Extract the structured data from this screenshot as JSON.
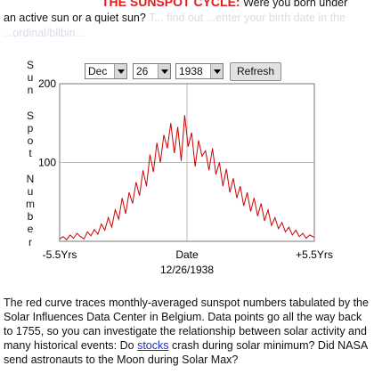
{
  "intro": {
    "title": "THE SUNSPOT CYCLE:",
    "line1": "Were you born under",
    "line2": "an active sun or a quiet sun?",
    "faded": "T... find out ...enter your birth date in the ...ordinal/bllbin..."
  },
  "side_label": "Sun Spot Number",
  "controls": {
    "month": "Dec",
    "day": "26",
    "year": "1938",
    "refresh_label": "Refresh"
  },
  "chart_data": {
    "type": "line",
    "ylabel": "Sun Spot Number",
    "ylim": [
      0,
      200
    ],
    "y_ticks": [
      "200",
      "100"
    ],
    "x_ticks": [
      "-5.5Yrs",
      "Date",
      "+5.5Yrs"
    ],
    "xlim": [
      -5.5,
      5.5
    ],
    "date_label": "12/26/1938",
    "line_color": "#cc0000",
    "grid": true,
    "series": [
      {
        "x": [
          -5.5,
          -5.35,
          -5.2,
          -5.05,
          -4.9,
          -4.75,
          -4.6,
          -4.45,
          -4.3,
          -4.15,
          -4.0,
          -3.85,
          -3.7,
          -3.55,
          -3.4,
          -3.25,
          -3.1,
          -2.95,
          -2.8,
          -2.65,
          -2.5,
          -2.35,
          -2.2,
          -2.05,
          -1.9,
          -1.75,
          -1.6,
          -1.45,
          -1.3,
          -1.15,
          -1.0,
          -0.85,
          -0.7,
          -0.55,
          -0.4,
          -0.25,
          -0.1,
          0.05,
          0.2,
          0.35,
          0.5,
          0.65,
          0.8,
          0.95,
          1.1,
          1.25,
          1.4,
          1.55,
          1.7,
          1.85,
          2.0,
          2.15,
          2.3,
          2.45,
          2.6,
          2.75,
          2.9,
          3.05,
          3.2,
          3.35,
          3.5,
          3.65,
          3.8,
          3.95,
          4.1,
          4.25,
          4.4,
          4.55,
          4.7,
          4.85,
          5.0,
          5.15,
          5.3,
          5.5
        ],
        "values": [
          3,
          6,
          2,
          8,
          4,
          10,
          6,
          3,
          12,
          7,
          15,
          9,
          22,
          14,
          30,
          18,
          40,
          28,
          55,
          35,
          62,
          48,
          75,
          58,
          90,
          70,
          110,
          88,
          125,
          100,
          135,
          118,
          150,
          112,
          145,
          102,
          160,
          120,
          138,
          95,
          128,
          108,
          115,
          90,
          118,
          85,
          100,
          70,
          92,
          62,
          80,
          55,
          70,
          45,
          62,
          38,
          55,
          32,
          48,
          26,
          40,
          20,
          30,
          16,
          24,
          12,
          18,
          8,
          14,
          6,
          10,
          4,
          8,
          5
        ]
      }
    ]
  },
  "paragraph": {
    "text1": "The red curve traces monthly-averaged sunspot numbers tabulated by the Solar Influences Data Center in Belgium. Data points go all the way back to 1755, so you can investigate the relationship between solar activity and many historical events: Do ",
    "link": "stocks",
    "text2": " crash during solar minimum? Did NASA send astronauts to the Moon during Solar Max?"
  }
}
